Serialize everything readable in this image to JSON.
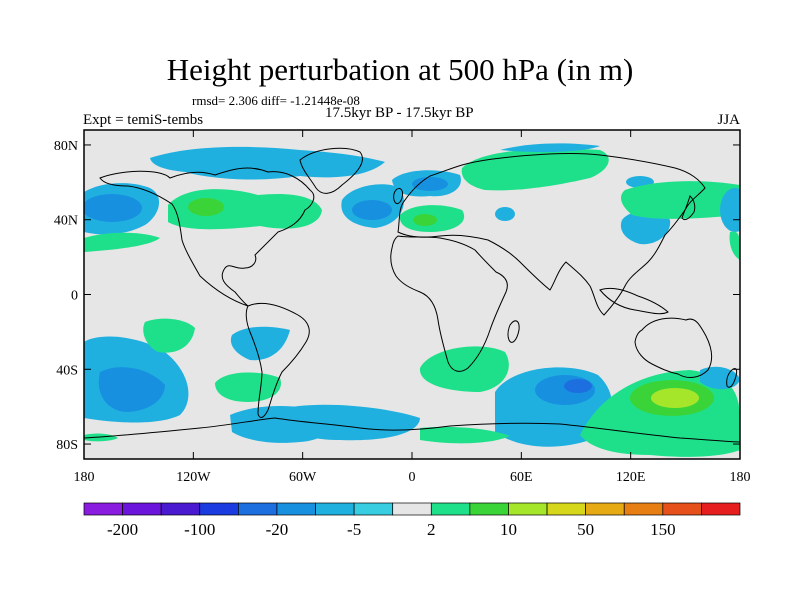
{
  "title": "Height perturbation at 500 hPa (in m)",
  "stats": "rmsd= 2.306 diff= -1.21448e-08",
  "left_label": "Expt = temiS-tembs",
  "center_label": "17.5kyr BP - 17.5kyr BP",
  "right_label": "JJA",
  "lat_ticks": [
    {
      "label": "80N",
      "lat": 80
    },
    {
      "label": "40N",
      "lat": 40
    },
    {
      "label": "0",
      "lat": 0
    },
    {
      "label": "40S",
      "lat": -40
    },
    {
      "label": "80S",
      "lat": -80
    }
  ],
  "lon_ticks": [
    {
      "label": "180",
      "lon": -180
    },
    {
      "label": "120W",
      "lon": -120
    },
    {
      "label": "60W",
      "lon": -60
    },
    {
      "label": "0",
      "lon": 0
    },
    {
      "label": "60E",
      "lon": 60
    },
    {
      "label": "120E",
      "lon": 120
    },
    {
      "label": "180",
      "lon": 180
    }
  ],
  "colorbar": {
    "colors": [
      "#8a1ce0",
      "#6a14dc",
      "#4a1ad0",
      "#1a3be0",
      "#1d6fe0",
      "#1890e0",
      "#20b0e0",
      "#38cde0",
      "#e6e6e6",
      "#1fe08a",
      "#3ad438",
      "#a6e62a",
      "#d6d61a",
      "#e6aa14",
      "#e67e14",
      "#e6501a",
      "#e61e1e"
    ],
    "labels": [
      {
        "text": "-200",
        "boundary": 1
      },
      {
        "text": "-100",
        "boundary": 3
      },
      {
        "text": "-20",
        "boundary": 5
      },
      {
        "text": "-5",
        "boundary": 7
      },
      {
        "text": "2",
        "boundary": 9
      },
      {
        "text": "10",
        "boundary": 11
      },
      {
        "text": "50",
        "boundary": 13
      },
      {
        "text": "150",
        "boundary": 15
      }
    ]
  },
  "map_colors": {
    "background": "#e6e6e6",
    "coast": "#000000"
  }
}
